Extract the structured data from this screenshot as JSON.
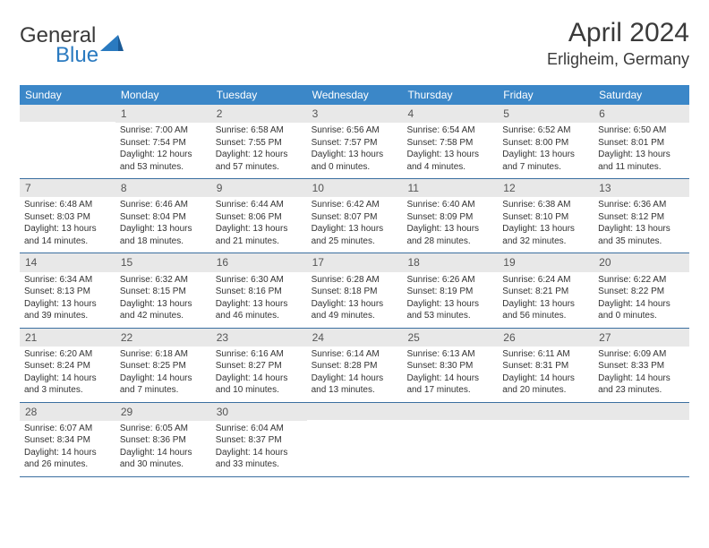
{
  "brand": {
    "word1": "General",
    "word2": "Blue"
  },
  "title": "April 2024",
  "location": "Erligheim, Germany",
  "colors": {
    "header_bg": "#3b87c8",
    "header_text": "#ffffff",
    "daynum_bg": "#e8e8e8",
    "row_border": "#3b6fa0",
    "logo_blue": "#2a7ac0"
  },
  "day_names": [
    "Sunday",
    "Monday",
    "Tuesday",
    "Wednesday",
    "Thursday",
    "Friday",
    "Saturday"
  ],
  "weeks": [
    [
      {
        "n": "",
        "lines": [
          "",
          "",
          "",
          ""
        ]
      },
      {
        "n": "1",
        "lines": [
          "Sunrise: 7:00 AM",
          "Sunset: 7:54 PM",
          "Daylight: 12 hours",
          "and 53 minutes."
        ]
      },
      {
        "n": "2",
        "lines": [
          "Sunrise: 6:58 AM",
          "Sunset: 7:55 PM",
          "Daylight: 12 hours",
          "and 57 minutes."
        ]
      },
      {
        "n": "3",
        "lines": [
          "Sunrise: 6:56 AM",
          "Sunset: 7:57 PM",
          "Daylight: 13 hours",
          "and 0 minutes."
        ]
      },
      {
        "n": "4",
        "lines": [
          "Sunrise: 6:54 AM",
          "Sunset: 7:58 PM",
          "Daylight: 13 hours",
          "and 4 minutes."
        ]
      },
      {
        "n": "5",
        "lines": [
          "Sunrise: 6:52 AM",
          "Sunset: 8:00 PM",
          "Daylight: 13 hours",
          "and 7 minutes."
        ]
      },
      {
        "n": "6",
        "lines": [
          "Sunrise: 6:50 AM",
          "Sunset: 8:01 PM",
          "Daylight: 13 hours",
          "and 11 minutes."
        ]
      }
    ],
    [
      {
        "n": "7",
        "lines": [
          "Sunrise: 6:48 AM",
          "Sunset: 8:03 PM",
          "Daylight: 13 hours",
          "and 14 minutes."
        ]
      },
      {
        "n": "8",
        "lines": [
          "Sunrise: 6:46 AM",
          "Sunset: 8:04 PM",
          "Daylight: 13 hours",
          "and 18 minutes."
        ]
      },
      {
        "n": "9",
        "lines": [
          "Sunrise: 6:44 AM",
          "Sunset: 8:06 PM",
          "Daylight: 13 hours",
          "and 21 minutes."
        ]
      },
      {
        "n": "10",
        "lines": [
          "Sunrise: 6:42 AM",
          "Sunset: 8:07 PM",
          "Daylight: 13 hours",
          "and 25 minutes."
        ]
      },
      {
        "n": "11",
        "lines": [
          "Sunrise: 6:40 AM",
          "Sunset: 8:09 PM",
          "Daylight: 13 hours",
          "and 28 minutes."
        ]
      },
      {
        "n": "12",
        "lines": [
          "Sunrise: 6:38 AM",
          "Sunset: 8:10 PM",
          "Daylight: 13 hours",
          "and 32 minutes."
        ]
      },
      {
        "n": "13",
        "lines": [
          "Sunrise: 6:36 AM",
          "Sunset: 8:12 PM",
          "Daylight: 13 hours",
          "and 35 minutes."
        ]
      }
    ],
    [
      {
        "n": "14",
        "lines": [
          "Sunrise: 6:34 AM",
          "Sunset: 8:13 PM",
          "Daylight: 13 hours",
          "and 39 minutes."
        ]
      },
      {
        "n": "15",
        "lines": [
          "Sunrise: 6:32 AM",
          "Sunset: 8:15 PM",
          "Daylight: 13 hours",
          "and 42 minutes."
        ]
      },
      {
        "n": "16",
        "lines": [
          "Sunrise: 6:30 AM",
          "Sunset: 8:16 PM",
          "Daylight: 13 hours",
          "and 46 minutes."
        ]
      },
      {
        "n": "17",
        "lines": [
          "Sunrise: 6:28 AM",
          "Sunset: 8:18 PM",
          "Daylight: 13 hours",
          "and 49 minutes."
        ]
      },
      {
        "n": "18",
        "lines": [
          "Sunrise: 6:26 AM",
          "Sunset: 8:19 PM",
          "Daylight: 13 hours",
          "and 53 minutes."
        ]
      },
      {
        "n": "19",
        "lines": [
          "Sunrise: 6:24 AM",
          "Sunset: 8:21 PM",
          "Daylight: 13 hours",
          "and 56 minutes."
        ]
      },
      {
        "n": "20",
        "lines": [
          "Sunrise: 6:22 AM",
          "Sunset: 8:22 PM",
          "Daylight: 14 hours",
          "and 0 minutes."
        ]
      }
    ],
    [
      {
        "n": "21",
        "lines": [
          "Sunrise: 6:20 AM",
          "Sunset: 8:24 PM",
          "Daylight: 14 hours",
          "and 3 minutes."
        ]
      },
      {
        "n": "22",
        "lines": [
          "Sunrise: 6:18 AM",
          "Sunset: 8:25 PM",
          "Daylight: 14 hours",
          "and 7 minutes."
        ]
      },
      {
        "n": "23",
        "lines": [
          "Sunrise: 6:16 AM",
          "Sunset: 8:27 PM",
          "Daylight: 14 hours",
          "and 10 minutes."
        ]
      },
      {
        "n": "24",
        "lines": [
          "Sunrise: 6:14 AM",
          "Sunset: 8:28 PM",
          "Daylight: 14 hours",
          "and 13 minutes."
        ]
      },
      {
        "n": "25",
        "lines": [
          "Sunrise: 6:13 AM",
          "Sunset: 8:30 PM",
          "Daylight: 14 hours",
          "and 17 minutes."
        ]
      },
      {
        "n": "26",
        "lines": [
          "Sunrise: 6:11 AM",
          "Sunset: 8:31 PM",
          "Daylight: 14 hours",
          "and 20 minutes."
        ]
      },
      {
        "n": "27",
        "lines": [
          "Sunrise: 6:09 AM",
          "Sunset: 8:33 PM",
          "Daylight: 14 hours",
          "and 23 minutes."
        ]
      }
    ],
    [
      {
        "n": "28",
        "lines": [
          "Sunrise: 6:07 AM",
          "Sunset: 8:34 PM",
          "Daylight: 14 hours",
          "and 26 minutes."
        ]
      },
      {
        "n": "29",
        "lines": [
          "Sunrise: 6:05 AM",
          "Sunset: 8:36 PM",
          "Daylight: 14 hours",
          "and 30 minutes."
        ]
      },
      {
        "n": "30",
        "lines": [
          "Sunrise: 6:04 AM",
          "Sunset: 8:37 PM",
          "Daylight: 14 hours",
          "and 33 minutes."
        ]
      },
      {
        "n": "",
        "lines": [
          "",
          "",
          "",
          ""
        ]
      },
      {
        "n": "",
        "lines": [
          "",
          "",
          "",
          ""
        ]
      },
      {
        "n": "",
        "lines": [
          "",
          "",
          "",
          ""
        ]
      },
      {
        "n": "",
        "lines": [
          "",
          "",
          "",
          ""
        ]
      }
    ]
  ]
}
